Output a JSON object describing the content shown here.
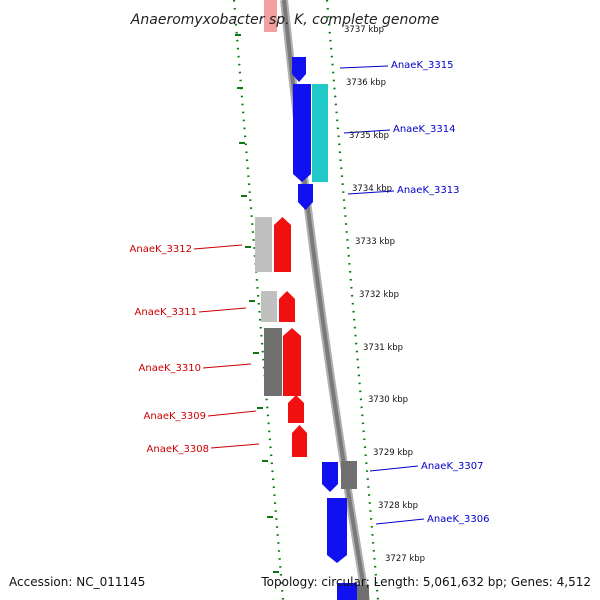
{
  "title": "Anaeromyxobacter sp. K, complete genome",
  "accession": "Accession: NC_011145",
  "topology": "Topology: circular; Length: 5,061,632 bp; Genes: 4,512",
  "colors": {
    "forward_label": "#0000cc",
    "reverse_label": "#cc0000",
    "blue_gene": "#1010f0",
    "cyan_gene": "#20c8c8",
    "red_gene": "#f01010",
    "gray_light": "#c0c0c0",
    "gray_dark": "#707070",
    "pink_gene": "#f4a0a0",
    "axis": "#8a8a8a",
    "tick": "#117711"
  },
  "ticks": [
    "3737 kbp",
    "3736 kbp",
    "3735 kbp",
    "3734 kbp",
    "3733 kbp",
    "3732 kbp",
    "3731 kbp",
    "3730 kbp",
    "3729 kbp",
    "3728 kbp",
    "3727 kbp"
  ],
  "genes": [
    {
      "label": "AnaeK_3315",
      "strand": "forward"
    },
    {
      "label": "AnaeK_3314",
      "strand": "forward"
    },
    {
      "label": "AnaeK_3313",
      "strand": "forward"
    },
    {
      "label": "AnaeK_3312",
      "strand": "reverse"
    },
    {
      "label": "AnaeK_3311",
      "strand": "reverse"
    },
    {
      "label": "AnaeK_3310",
      "strand": "reverse"
    },
    {
      "label": "AnaeK_3309",
      "strand": "reverse"
    },
    {
      "label": "AnaeK_3308",
      "strand": "reverse"
    },
    {
      "label": "AnaeK_3307",
      "strand": "forward"
    },
    {
      "label": "AnaeK_3306",
      "strand": "forward"
    }
  ]
}
